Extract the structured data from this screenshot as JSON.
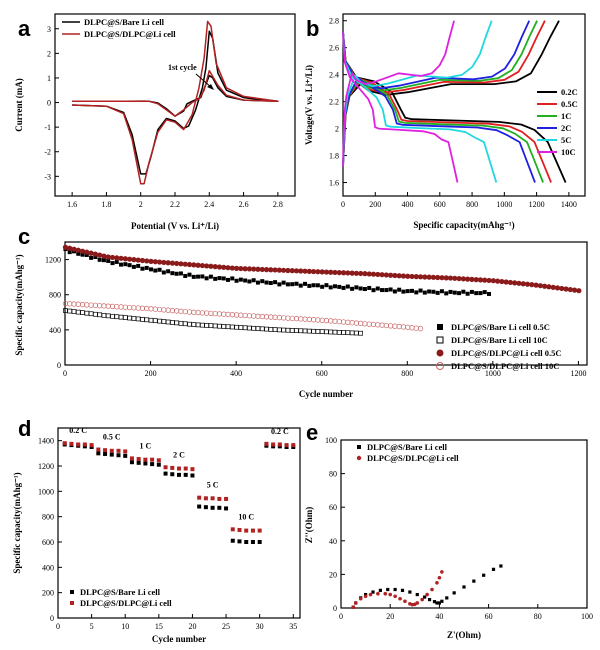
{
  "chart_data": [
    {
      "panel": "a",
      "type": "line",
      "xlabel": "Potential (V vs. Li⁺/Li)",
      "ylabel": "Current (mA)",
      "xlim": [
        1.5,
        2.9
      ],
      "ylim": [
        -3.8,
        3.6
      ],
      "xticks": [
        1.6,
        1.8,
        2.0,
        2.2,
        2.4,
        2.6,
        2.8
      ],
      "yticks": [
        -3,
        -2,
        -1,
        0,
        1,
        2,
        3
      ],
      "annotation": "1st cycle",
      "series": [
        {
          "name": "DLPC@S/Bare Li cell",
          "color": "#000000",
          "x": [
            1.6,
            1.8,
            1.9,
            1.95,
            2.0,
            2.03,
            2.06,
            2.1,
            2.15,
            2.2,
            2.25,
            2.28,
            2.32,
            2.36,
            2.38,
            2.4,
            2.42,
            2.45,
            2.5,
            2.6,
            2.8,
            2.6,
            2.5,
            2.45,
            2.42,
            2.4,
            2.37,
            2.35,
            2.3,
            2.27,
            2.25,
            2.2,
            2.15,
            2.1,
            2.05,
            2.02,
            1.98,
            1.9,
            1.8,
            1.6
          ],
          "y": [
            -0.1,
            -0.15,
            -0.4,
            -1.3,
            -2.9,
            -2.9,
            -2.2,
            -1.1,
            -0.65,
            -0.75,
            -1.05,
            -0.95,
            -0.3,
            0.6,
            1.4,
            2.9,
            2.6,
            1.2,
            0.5,
            0.2,
            0.05,
            0.1,
            0.25,
            0.6,
            1.0,
            1.1,
            0.55,
            0.2,
            0.05,
            -0.05,
            -0.35,
            -0.55,
            -0.25,
            -0.02,
            0.05,
            0.06,
            0.05,
            0.05,
            0.05,
            0.05
          ]
        },
        {
          "name": "DLPC@S/DLPC@Li cell",
          "color": "#b22222",
          "x": [
            1.6,
            1.8,
            1.9,
            1.95,
            2.0,
            2.02,
            2.05,
            2.1,
            2.15,
            2.2,
            2.25,
            2.3,
            2.34,
            2.37,
            2.39,
            2.41,
            2.44,
            2.5,
            2.6,
            2.8,
            2.6,
            2.5,
            2.45,
            2.4,
            2.37,
            2.34,
            2.3,
            2.25,
            2.2,
            2.15,
            2.1,
            2.05,
            1.98,
            1.9,
            1.8,
            1.6
          ],
          "y": [
            -0.1,
            -0.15,
            -0.45,
            -1.5,
            -3.3,
            -3.3,
            -2.4,
            -1.2,
            -0.7,
            -0.8,
            -1.1,
            -0.5,
            0.6,
            1.8,
            3.3,
            3.1,
            1.6,
            0.6,
            0.25,
            0.05,
            0.1,
            0.3,
            0.7,
            1.3,
            0.5,
            0.15,
            0.0,
            -0.3,
            -0.55,
            -0.3,
            -0.05,
            0.05,
            0.06,
            0.05,
            0.05,
            0.05
          ]
        }
      ]
    },
    {
      "panel": "b",
      "type": "line",
      "xlabel": "Specific capacity(mAhg⁻¹)",
      "ylabel": "Voltage(V vs. Li⁺/Li)",
      "xlim": [
        0,
        1500
      ],
      "ylim": [
        1.5,
        2.85
      ],
      "xticks": [
        0,
        200,
        400,
        600,
        800,
        1000,
        1200,
        1400
      ],
      "yticks": [
        1.6,
        1.8,
        2.0,
        2.2,
        2.4,
        2.6,
        2.8
      ],
      "series": [
        {
          "name": "0.2C",
          "color": "#000000",
          "capacity": 1380
        },
        {
          "name": "0.5C",
          "color": "#e02020",
          "capacity": 1290
        },
        {
          "name": "1C",
          "color": "#20b020",
          "capacity": 1240
        },
        {
          "name": "2C",
          "color": "#2020e0",
          "capacity": 1190
        },
        {
          "name": "5C",
          "color": "#20d8e0",
          "capacity": 950
        },
        {
          "name": "10C",
          "color": "#e020e0",
          "capacity": 710
        }
      ]
    },
    {
      "panel": "c",
      "type": "scatter",
      "xlabel": "Cycle number",
      "ylabel": "Specific capacity(mAhg⁻¹)",
      "xlim": [
        0,
        1220
      ],
      "ylim": [
        0,
        1400
      ],
      "xticks": [
        0,
        200,
        400,
        600,
        800,
        1000,
        1200
      ],
      "yticks": [
        0,
        400,
        800,
        1200
      ],
      "series": [
        {
          "name": "DLPC@S/Bare Li cell 0.5C",
          "marker": "filled-square",
          "color": "#000000",
          "x": [
            1,
            100,
            200,
            300,
            400,
            500,
            600,
            700,
            800,
            900,
            1000
          ],
          "y": [
            1310,
            1180,
            1090,
            1010,
            970,
            930,
            900,
            870,
            840,
            825,
            820
          ]
        },
        {
          "name": "DLPC@S/Bare Li cell 10C",
          "marker": "open-square",
          "color": "#000000",
          "x": [
            1,
            100,
            200,
            300,
            400,
            500,
            600,
            700
          ],
          "y": [
            620,
            560,
            510,
            460,
            430,
            400,
            380,
            360
          ]
        },
        {
          "name": "DLPC@S/DLPC@Li cell 0.5C",
          "marker": "filled-circle",
          "color": "#8b1a1a",
          "x": [
            1,
            100,
            200,
            300,
            400,
            500,
            600,
            700,
            800,
            900,
            1000,
            1100,
            1210
          ],
          "y": [
            1340,
            1230,
            1180,
            1140,
            1100,
            1080,
            1060,
            1040,
            1010,
            990,
            960,
            910,
            840
          ]
        },
        {
          "name": "DLPC@S/DLPC@Li cell 10C",
          "marker": "open-circle",
          "color": "#c86464",
          "x": [
            1,
            100,
            200,
            300,
            400,
            500,
            600,
            700,
            800,
            840
          ],
          "y": [
            700,
            670,
            640,
            600,
            570,
            540,
            510,
            470,
            430,
            410
          ]
        }
      ]
    },
    {
      "panel": "d",
      "type": "scatter",
      "xlabel": "Cycle number",
      "ylabel": "Specific capacity(mAhg⁻¹)",
      "xlim": [
        0,
        36
      ],
      "ylim": [
        0,
        1500
      ],
      "xticks": [
        0,
        5,
        10,
        15,
        20,
        25,
        30,
        35
      ],
      "yticks": [
        0,
        200,
        400,
        600,
        800,
        1000,
        1200,
        1400
      ],
      "rate_labels": [
        "0.2 C",
        "0.5 C",
        "1 C",
        "2 C",
        "5 C",
        "10 C",
        "0.2 C"
      ],
      "series": [
        {
          "name": "DLPC@S/Bare Li cell",
          "color": "#000000",
          "values": [
            1370,
            1365,
            1360,
            1355,
            1350,
            1300,
            1295,
            1290,
            1285,
            1280,
            1230,
            1225,
            1220,
            1215,
            1210,
            1140,
            1135,
            1130,
            1130,
            1125,
            880,
            875,
            870,
            870,
            865,
            610,
            605,
            600,
            600,
            600,
            1360,
            1355,
            1355,
            1350,
            1350
          ]
        },
        {
          "name": "DLPC@S/DLPC@Li cell",
          "color": "#b22222",
          "values": [
            1380,
            1375,
            1370,
            1370,
            1365,
            1330,
            1325,
            1320,
            1320,
            1315,
            1260,
            1255,
            1250,
            1250,
            1245,
            1190,
            1185,
            1180,
            1180,
            1175,
            950,
            945,
            945,
            940,
            940,
            700,
            695,
            690,
            690,
            690,
            1375,
            1370,
            1370,
            1365,
            1365
          ]
        }
      ]
    },
    {
      "panel": "e",
      "type": "scatter",
      "xlabel": "Z'(Ohm)",
      "ylabel": "Z''(Ohm)",
      "xlim": [
        0,
        100
      ],
      "ylim": [
        0,
        100
      ],
      "xticks": [
        0,
        20,
        40,
        60,
        80,
        100
      ],
      "yticks": [
        0,
        20,
        40,
        60,
        80,
        100
      ],
      "series": [
        {
          "name": "DLPC@S/Bare Li cell",
          "color": "#000000",
          "x": [
            5,
            6,
            8,
            10,
            13,
            16,
            19,
            22,
            25,
            28,
            31,
            34,
            36,
            38,
            39,
            40,
            41,
            43,
            46,
            50,
            54,
            58,
            62,
            65
          ],
          "y": [
            0.5,
            3,
            6,
            8,
            9.5,
            10.5,
            11,
            11,
            10.5,
            9.5,
            8,
            6.5,
            5,
            3.8,
            3,
            3,
            4,
            6,
            9,
            12.5,
            16,
            19.5,
            23,
            25
          ]
        },
        {
          "name": "DLPC@S/DLPC@Li cell",
          "color": "#b22222",
          "x": [
            5,
            6,
            8,
            10,
            12,
            15,
            18,
            20,
            22,
            24,
            26,
            28,
            29,
            30,
            31,
            33,
            35,
            37,
            39,
            40,
            41
          ],
          "y": [
            0.5,
            3,
            5.5,
            7,
            8,
            8.5,
            8.5,
            8,
            7,
            5.5,
            4,
            2.5,
            2,
            2.2,
            3,
            5,
            8,
            11,
            15,
            18,
            21.5
          ]
        }
      ]
    }
  ],
  "panel_labels": [
    "a",
    "b",
    "c",
    "d",
    "e"
  ]
}
